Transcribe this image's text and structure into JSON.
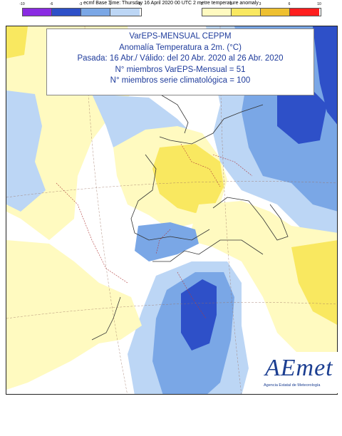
{
  "header": {
    "title": "ecmf  Base Time: Thursday 16 April 2020 00 UTC 2 metre temperature anomaly",
    "cold_ticks": [
      "-10",
      "-6",
      "-3",
      "-1",
      "0"
    ],
    "warm_ticks": [
      "0",
      "1",
      "3",
      "6",
      "10"
    ],
    "cold_colors": [
      "#8a2be2",
      "#2e50c8",
      "#7aa7e6",
      "#bcd6f5"
    ],
    "warm_colors": [
      "#fffac0",
      "#f9e860",
      "#eec030",
      "#ff1e1e"
    ]
  },
  "title_box": {
    "line1": "VarEPS-MENSUAL CEPPM",
    "line2": "Anomalía Temperatura a 2m. (°C)",
    "line3": "Pasada: 16 Abr./ Válido: del 20 Abr. 2020 al 26 Abr. 2020",
    "line4": "N° miembros VarEPS-Mensual = 51",
    "line5": "N° miembros serie climatológica = 100"
  },
  "logo": {
    "wordmark": "AEmet",
    "subtitle": "Agencia Estatal de Meteorología"
  },
  "colors": {
    "neutral": "#ffffff",
    "light_blue": "#bcd6f5",
    "mid_blue": "#7aa7e6",
    "dark_blue": "#2e50c8",
    "light_yellow": "#fffac0",
    "yellow": "#f9e860",
    "orange": "#eec030",
    "coastline": "#333333",
    "border": "#b03a3a"
  }
}
